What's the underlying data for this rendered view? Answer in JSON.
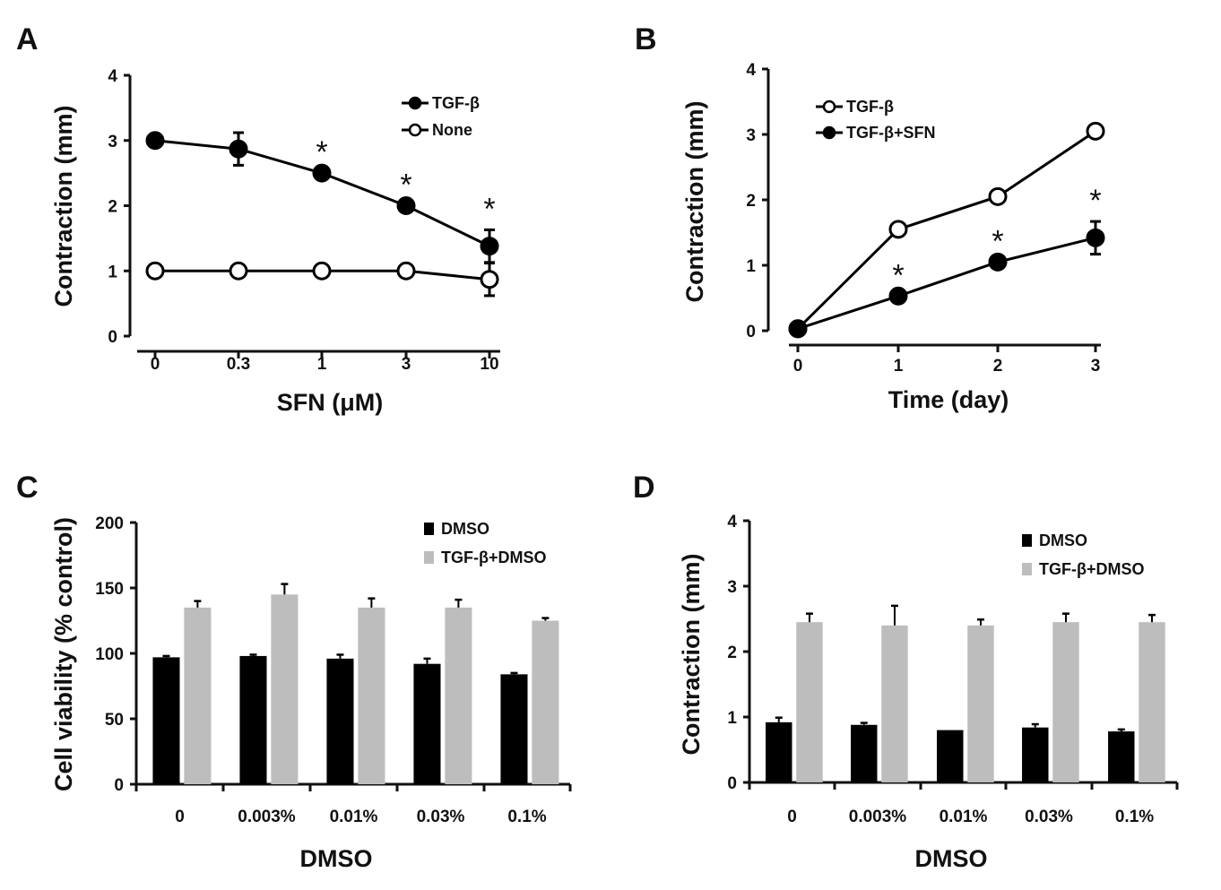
{
  "figure": {
    "panels": [
      "A",
      "B",
      "C",
      "D"
    ]
  },
  "colors": {
    "black_series": "#000000",
    "gray_series": "#bdbdbd",
    "axis": "#111111"
  },
  "chart_data": [
    {
      "panel": "A",
      "type": "line",
      "title": "",
      "xlabel": "SFN (μM)",
      "ylabel": "Contraction (mm)",
      "categories": [
        "0",
        "0.3",
        "1",
        "3",
        "10"
      ],
      "ylim": [
        0,
        4
      ],
      "yticks": [
        "0",
        "1",
        "2",
        "3",
        "4"
      ],
      "legend_position": "top-right",
      "grid": false,
      "series": [
        {
          "name": "TGF-β",
          "marker": "filled-circle",
          "values": [
            3.0,
            2.87,
            2.5,
            2.0,
            1.38
          ],
          "errors": [
            0,
            0.25,
            0,
            0,
            0.25
          ],
          "significance": [
            "",
            "",
            "*",
            "*",
            "*"
          ]
        },
        {
          "name": "None",
          "marker": "open-circle",
          "values": [
            1.0,
            1.0,
            1.0,
            1.0,
            0.87
          ],
          "errors": [
            0,
            0,
            0,
            0,
            0.25
          ],
          "significance": [
            "",
            "",
            "",
            "",
            ""
          ]
        }
      ]
    },
    {
      "panel": "B",
      "type": "line",
      "title": "",
      "xlabel": "Time (day)",
      "ylabel": "Contraction (mm)",
      "categories": [
        "0",
        "1",
        "2",
        "3"
      ],
      "ylim": [
        0,
        4
      ],
      "yticks": [
        "0",
        "1",
        "2",
        "3",
        "4"
      ],
      "legend_position": "top-left",
      "grid": false,
      "series": [
        {
          "name": "TGF-β",
          "marker": "open-circle",
          "values": [
            0.03,
            1.55,
            2.05,
            3.05
          ],
          "errors": [
            0,
            0,
            0,
            0
          ],
          "significance": [
            "",
            "",
            "",
            ""
          ]
        },
        {
          "name": "TGF-β+SFN",
          "marker": "filled-circle",
          "values": [
            0.03,
            0.53,
            1.05,
            1.42
          ],
          "errors": [
            0,
            0,
            0,
            0.25
          ],
          "significance": [
            "",
            "*",
            "*",
            "*"
          ]
        }
      ]
    },
    {
      "panel": "C",
      "type": "bar",
      "title": "",
      "xlabel": "DMSO",
      "ylabel": "Cell viability (% control)",
      "categories": [
        "0",
        "0.003%",
        "0.01%",
        "0.03%",
        "0.1%"
      ],
      "ylim": [
        0,
        200
      ],
      "yticks": [
        "0",
        "50",
        "100",
        "150",
        "200"
      ],
      "legend_position": "top-right",
      "grid": false,
      "series": [
        {
          "name": "DMSO",
          "color": "#000000",
          "values": [
            97,
            98,
            96,
            92,
            84
          ],
          "errors": [
            1,
            1,
            3,
            4,
            1
          ]
        },
        {
          "name": "TGF-β+DMSO",
          "color": "#bdbdbd",
          "values": [
            135,
            145,
            135,
            135,
            125
          ],
          "errors": [
            5,
            8,
            7,
            6,
            2
          ]
        }
      ]
    },
    {
      "panel": "D",
      "type": "bar",
      "title": "",
      "xlabel": "DMSO",
      "ylabel": "Contraction (mm)",
      "categories": [
        "0",
        "0.003%",
        "0.01%",
        "0.03%",
        "0.1%"
      ],
      "ylim": [
        0,
        4
      ],
      "yticks": [
        "0",
        "1",
        "2",
        "3",
        "4"
      ],
      "legend_position": "top-right",
      "grid": false,
      "series": [
        {
          "name": "DMSO",
          "color": "#000000",
          "values": [
            0.92,
            0.88,
            0.8,
            0.84,
            0.78
          ],
          "errors": [
            0.07,
            0.03,
            0,
            0.05,
            0.03
          ]
        },
        {
          "name": "TGF-β+DMSO",
          "color": "#bdbdbd",
          "values": [
            2.45,
            2.4,
            2.4,
            2.45,
            2.45
          ],
          "errors": [
            0.13,
            0.3,
            0.09,
            0.13,
            0.11
          ]
        }
      ]
    }
  ]
}
